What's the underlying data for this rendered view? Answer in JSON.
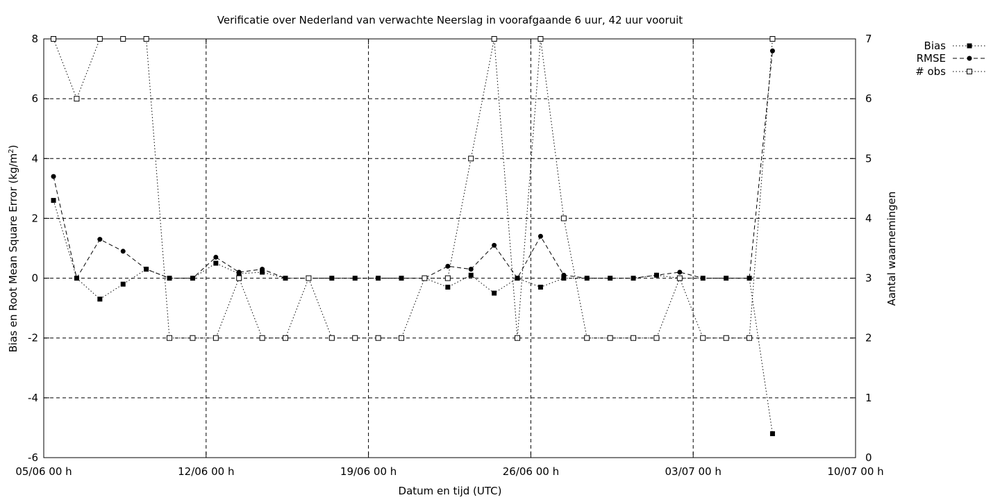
{
  "chart_data": {
    "type": "line",
    "title": "Verificatie over Nederland van verwachte Neerslag in voorafgaande 6 uur, 42 uur vooruit",
    "xlabel": "Datum en tijd (UTC)",
    "ylabel_left": "Bias en Root Mean Square Error (kg/m",
    "ylabel_left_sup": "2",
    "ylabel_left_end": ")",
    "ylabel_right": "Aantal waarnemingen",
    "x_ticks": [
      "05/06 00 h",
      "12/06 00 h",
      "19/06 00 h",
      "26/06 00 h",
      "03/07 00 h",
      "10/07 00 h"
    ],
    "xlim_days": [
      0,
      35
    ],
    "ylim_left": [
      -6,
      8
    ],
    "ylim_right": [
      0,
      7
    ],
    "y_ticks_left": [
      "8",
      "6",
      "4",
      "2",
      "0",
      "-2",
      "-4",
      "-6"
    ],
    "y_ticks_right": [
      "7",
      "6",
      "5",
      "4",
      "3",
      "2",
      "1",
      "0"
    ],
    "grid": true,
    "legend_position": "top-right outside",
    "x_days": [
      0.42,
      1.42,
      2.42,
      3.42,
      4.42,
      5.42,
      6.42,
      7.42,
      8.42,
      9.42,
      10.42,
      11.42,
      12.42,
      13.42,
      14.42,
      15.42,
      16.42,
      17.42,
      18.42,
      19.42,
      20.42,
      21.42,
      22.42,
      23.42,
      24.42,
      25.42,
      26.42,
      27.42,
      28.42,
      29.42,
      30.42,
      31.42,
      32.42,
      33.42,
      34.42
    ],
    "series": [
      {
        "name": "Bias",
        "axis": "left",
        "values": [
          2.6,
          0,
          -0.7,
          -0.2,
          0.3,
          0,
          0,
          0.5,
          0.15,
          0.2,
          0,
          0,
          0,
          0,
          0,
          0,
          0,
          -0.3,
          0.1,
          -0.5,
          0,
          -0.3,
          0,
          0,
          0,
          0,
          0.1,
          0,
          0,
          0,
          0,
          -5.2
        ]
      },
      {
        "name": "RMSE",
        "axis": "left",
        "values": [
          3.4,
          0,
          1.3,
          0.9,
          0.3,
          0,
          0,
          0.7,
          0.2,
          0.3,
          0,
          0,
          0,
          0,
          0,
          0,
          0,
          0.4,
          0.3,
          1.1,
          0,
          1.4,
          0.1,
          0,
          0,
          0,
          0.1,
          0.2,
          0,
          0,
          0,
          7.6
        ]
      },
      {
        "name": "# obs",
        "axis": "right",
        "values": [
          7,
          6,
          7,
          7,
          7,
          2,
          2,
          2,
          3,
          2,
          2,
          3,
          2,
          2,
          2,
          2,
          3,
          3,
          5,
          7,
          2,
          7,
          4,
          2,
          2,
          2,
          2,
          3,
          2,
          2,
          2,
          7
        ]
      }
    ],
    "point_days": [
      0,
      1,
      2,
      3,
      4,
      5,
      6,
      7,
      8,
      9,
      10,
      11,
      12,
      13,
      14,
      15,
      16,
      17,
      18,
      19,
      20,
      21,
      22,
      23,
      24,
      25,
      26,
      27,
      28,
      29,
      30,
      31
    ]
  }
}
